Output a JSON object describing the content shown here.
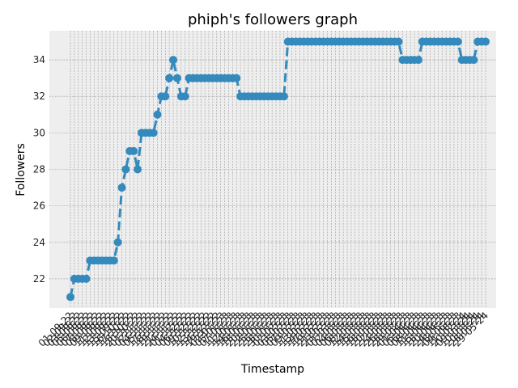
{
  "chart_data": {
    "type": "line",
    "title": "phiph's followers graph",
    "xlabel": "Timestamp",
    "ylabel": "Followers",
    "ylim": [
      20.4,
      35.6
    ],
    "yticks": [
      22,
      24,
      26,
      28,
      30,
      32,
      34
    ],
    "grid": true,
    "line_style": "dashed",
    "marker": "circle",
    "colors": {
      "series": "#348abd",
      "plot_background": "#eeeeee",
      "grid": "#999999"
    },
    "x_tick_labels_partial": [
      "01-09-22",
      "02-09-22",
      "03-09-22",
      "05-09-22",
      "06-09-22",
      "07-09-22",
      "08-09-22",
      "09-09-22",
      "11-09-22",
      "12-09-22",
      "13-09-22",
      "15-09-22",
      "16-10-22",
      "17-10-22",
      "18-10-22",
      "20-10-22",
      "01-11-22",
      "02-11-22",
      "04-11-22",
      "05-11-22",
      "17-11-22",
      "18-11-22",
      "19-11-22",
      "21-11-22",
      "24-11-22",
      "01-12-22",
      "04-12-22",
      "06-12-22",
      "09-12-22",
      "10-12-22",
      "12-12-22",
      "13-12-22",
      "14-12-22",
      "19-12-22",
      "02-01-23",
      "05-01-23",
      "07-01-23",
      "11-01-23",
      "12-01-23",
      "14-01-23",
      "16-01-23",
      "18-01-23",
      "20-01-23",
      "22-01-23",
      "25-01-23",
      "26-01-23",
      "28-01-23",
      "30-01-23",
      "02-02-23",
      "03-02-23",
      "05-02-23",
      "07-02-23",
      "09-02-23",
      "11-02-23",
      "13-02-23",
      "14-02-23",
      "17-02-23",
      "19-02-23",
      "21-02-23",
      "23-02-23",
      "01-03-23",
      "02-03-23",
      "04-03-23",
      "06-03-23",
      "08-03-23",
      "12-03-23",
      "14-03-23",
      "15-03-23",
      "16-03-23",
      "18-03-23",
      "20-03-23",
      "22-03-23",
      "24-03-23",
      "26-03-23",
      "28-03-23",
      "29-03-23",
      "01-04-23",
      "05-04-23",
      "06-04-23",
      "08-04-23",
      "11-04-23",
      "15-04-23",
      "18-04-23",
      "20-04-23",
      "24-04-23",
      "28-05-23",
      "04-06-23",
      "11-08-23",
      "20-02-24",
      "09-03-24",
      "10-03-24",
      "20-03-24",
      "28-05-24",
      "29-05-24"
    ],
    "series": [
      {
        "values": [
          21,
          22,
          22,
          22,
          22,
          23,
          23,
          23,
          23,
          23,
          23,
          23,
          24,
          27,
          28,
          29,
          29,
          28,
          30,
          30,
          30,
          30,
          31,
          32,
          32,
          33,
          34,
          33,
          32,
          32,
          33,
          33,
          33,
          33,
          33,
          33,
          33,
          33,
          33,
          33,
          33,
          33,
          33,
          32,
          32,
          32,
          32,
          32,
          32,
          32,
          32,
          32,
          32,
          32,
          32,
          35,
          35,
          35,
          35,
          35,
          35,
          35,
          35,
          35,
          35,
          35,
          35,
          35,
          35,
          35,
          35,
          35,
          35,
          35,
          35,
          35,
          35,
          35,
          35,
          35,
          35,
          35,
          35,
          35,
          34,
          34,
          34,
          34,
          34,
          35,
          35,
          35,
          35,
          35,
          35,
          35,
          35,
          35,
          35,
          34,
          34,
          34,
          34,
          35,
          35,
          35
        ]
      }
    ]
  }
}
